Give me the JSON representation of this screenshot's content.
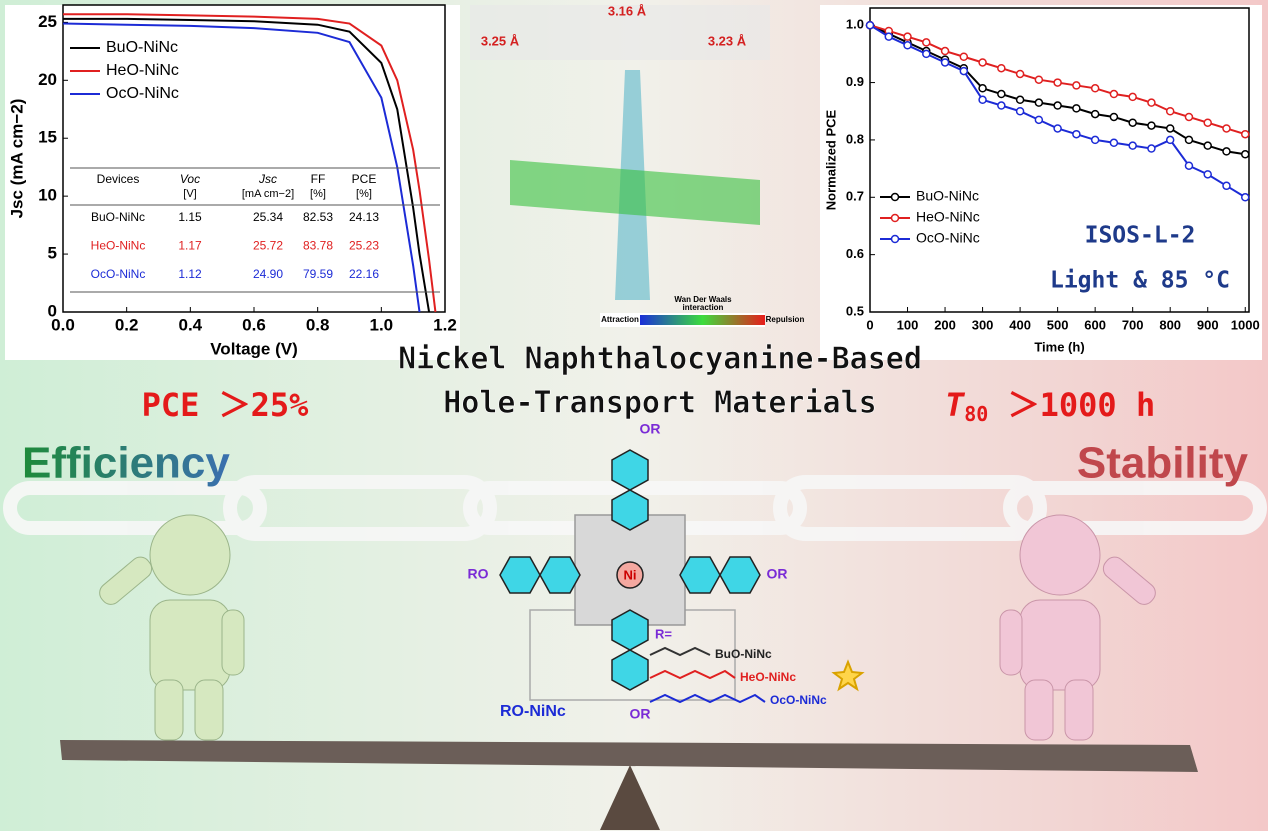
{
  "chart_data": [
    {
      "type": "line",
      "xlabel": "Voltage (V)",
      "ylabel": "Jsc (mA cm−2)",
      "x": [
        0,
        0.2,
        0.4,
        0.6,
        0.8,
        0.9,
        1.0,
        1.05,
        1.1,
        1.12,
        1.15,
        1.17
      ],
      "xlim": [
        0,
        1.2
      ],
      "xticks": [
        {
          "value": 0,
          "label": "0.0"
        },
        {
          "value": 0.2,
          "label": "0.2"
        },
        {
          "value": 0.4,
          "label": "0.4"
        },
        {
          "value": 0.6,
          "label": "0.6"
        },
        {
          "value": 0.8,
          "label": "0.8"
        },
        {
          "value": 1,
          "label": "1.0"
        },
        {
          "value": 1.2,
          "label": "1.2"
        }
      ],
      "ylim": [
        0,
        26.5
      ],
      "yticks": [
        0,
        5,
        10,
        15,
        20,
        25
      ],
      "legend": "upper left",
      "series": [
        {
          "name": "BuO-NiNc",
          "color": "#000000",
          "values": [
            25.3,
            25.3,
            25.2,
            25.1,
            24.8,
            24.2,
            21.5,
            17.5,
            9,
            5,
            0,
            null
          ]
        },
        {
          "name": "HeO-NiNc",
          "color": "#e02020",
          "values": [
            25.7,
            25.7,
            25.6,
            25.5,
            25.3,
            24.9,
            23.0,
            20,
            14,
            10.5,
            4.5,
            0
          ]
        },
        {
          "name": "OcO-NiNc",
          "color": "#1c2bd6",
          "values": [
            24.9,
            24.8,
            24.7,
            24.5,
            24.1,
            23.3,
            18.5,
            12.5,
            4,
            0,
            null,
            null
          ]
        }
      ],
      "table": {
        "header": [
          "Devices",
          "Voc",
          "Jsc",
          "FF",
          "PCE"
        ],
        "units": [
          "[V]",
          "[mA cm−2]",
          "[%]",
          "[%]"
        ],
        "rows": [
          [
            "BuO-NiNc",
            "1.15",
            "25.34",
            "82.53",
            "24.13"
          ],
          [
            "HeO-NiNc",
            "1.17",
            "25.72",
            "83.78",
            "25.23"
          ],
          [
            "OcO-NiNc",
            "1.12",
            "24.90",
            "79.59",
            "22.16"
          ]
        ]
      }
    },
    {
      "type": "line",
      "markers": true,
      "xlabel": "Time (h)",
      "ylabel": "Normalized PCE",
      "x": [
        0,
        50,
        100,
        150,
        200,
        250,
        300,
        350,
        400,
        450,
        500,
        550,
        600,
        650,
        700,
        750,
        800,
        850,
        900,
        950,
        1000
      ],
      "xlim": [
        0,
        1010
      ],
      "xticks": [
        0,
        100,
        200,
        300,
        400,
        500,
        600,
        700,
        800,
        900,
        1000
      ],
      "ylim": [
        0.5,
        1.03
      ],
      "yticks": [
        0.5,
        0.6,
        0.7,
        0.8,
        0.9,
        {
          "value": 1,
          "label": "1.0"
        }
      ],
      "legend": "lower left",
      "series": [
        {
          "name": "BuO-NiNc",
          "color": "#000000",
          "values": [
            1.0,
            0.985,
            0.97,
            0.955,
            0.94,
            0.925,
            0.89,
            0.88,
            0.87,
            0.865,
            0.86,
            0.855,
            0.845,
            0.84,
            0.83,
            0.825,
            0.82,
            0.8,
            0.79,
            0.78,
            0.775
          ]
        },
        {
          "name": "HeO-NiNc",
          "color": "#e02020",
          "values": [
            1.0,
            0.99,
            0.98,
            0.97,
            0.955,
            0.945,
            0.935,
            0.925,
            0.915,
            0.905,
            0.9,
            0.895,
            0.89,
            0.88,
            0.875,
            0.865,
            0.85,
            0.84,
            0.83,
            0.82,
            0.81
          ]
        },
        {
          "name": "OcO-NiNc",
          "color": "#1c2bd6",
          "values": [
            1.0,
            0.98,
            0.965,
            0.95,
            0.935,
            0.92,
            0.87,
            0.86,
            0.85,
            0.835,
            0.82,
            0.81,
            0.8,
            0.795,
            0.79,
            0.785,
            0.8,
            0.755,
            0.74,
            0.72,
            0.7
          ]
        }
      ],
      "annotations": [
        "ISOS-L-2",
        "Light & 85 °C"
      ]
    }
  ],
  "title": [
    "Nickel Naphthalocyanine-Based",
    "Hole-Transport Materials"
  ],
  "highlights": {
    "pce": "PCE ＞25%",
    "t80": [
      "T",
      "80",
      " ＞1000 h"
    ]
  },
  "sides": [
    "Efficiency",
    "Stability"
  ],
  "model": {
    "distances": [
      "3.16 Å",
      "3.25 Å",
      "3.23 Å"
    ],
    "colorbar": [
      "Wan Der Waals",
      "interaction",
      "Attraction",
      "Repulsion"
    ]
  },
  "molecule": {
    "substituents": [
      "OR",
      "RO",
      "OR",
      "OR"
    ],
    "center": "Ni",
    "r_label": "R=",
    "variants": [
      "BuO-NiNc",
      "HeO-NiNc",
      "OcO-NiNc"
    ],
    "name": "RO-NiNc"
  }
}
